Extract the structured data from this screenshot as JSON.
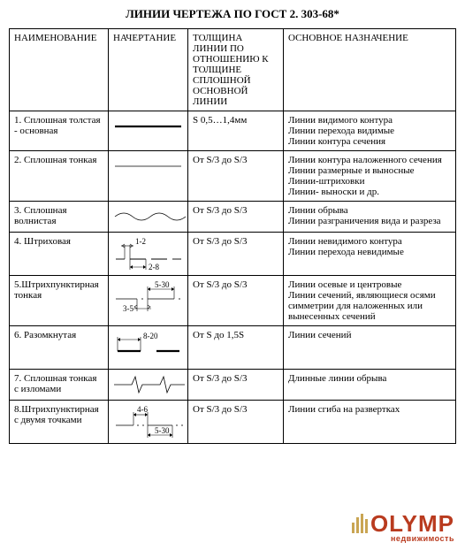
{
  "title": "ЛИНИИ ЧЕРТЕЖА ПО ГОСТ 2. 303-68*",
  "columns": [
    "НАИМЕНОВАНИЕ",
    "НАЧЕРТАНИЕ",
    "ТОЛЩИНА ЛИНИИ ПО ОТНОШЕНИЮ К ТОЛЩИНЕ СПЛОШНОЙ ОСНОВНОЙ ЛИНИИ",
    "ОСНОВНОЕ НАЗНАЧЕНИЕ"
  ],
  "rows": [
    {
      "n": "1.  Сплошная толстая - основная",
      "t": "S  0,5…1,4мм",
      "d": "Линии видимого контура\nЛинии перехода видимые\nЛинии контура сечения",
      "g": "solid_thick"
    },
    {
      "n": "2. Сплошная тонкая",
      "t": "От S/3       до S/3",
      "d": "Линии контура наложенного сечения\nЛинии размерные и выносные\nЛинии-штриховки\nЛинии- выноски и др.",
      "g": "solid_thin"
    },
    {
      "n": "3.  Сплошная волнистая",
      "t": "От S/3       до S/3",
      "d": "Линии обрыва\nЛинии разграничения вида и разреза",
      "g": "wavy"
    },
    {
      "n": "4. Штриховая",
      "t": "От S/3   до S/3",
      "d": "Линии невидимого контура\nЛинии перехода невидимые",
      "g": "dashed",
      "dims": [
        "1-2",
        "2-8"
      ]
    },
    {
      "n": "5.Штрихпунктирная тонкая",
      "t": "От S/3   до S/3",
      "d": "Линии осевые и центровые\nЛинии сечений, являющиеся осями симметрии для наложенных или вынесенных сечений",
      "g": "dashdot",
      "dims": [
        "5-30",
        "3-5"
      ]
    },
    {
      "n": "6. Разомкнутая",
      "t": "От S       до 1,5S",
      "d": "Линии сечений",
      "g": "open",
      "dims": [
        "8-20"
      ]
    },
    {
      "n": "7. Сплошная тонкая с изломами",
      "t": "От S/3   до S/3",
      "d": "Длинные линии обрыва",
      "g": "zigzag"
    },
    {
      "n": "8.Штрихпунктирная с двумя точками",
      "t": "От S/3   до S/3",
      "d": "Линии сгиба на развертках",
      "g": "dashdot2",
      "dims": [
        "4-6",
        "5-30"
      ]
    }
  ],
  "watermark": {
    "main": "OLYMP",
    "sub": "недвижимость",
    "bar_color": "#c9a553",
    "text_color": "#b93b1f"
  }
}
